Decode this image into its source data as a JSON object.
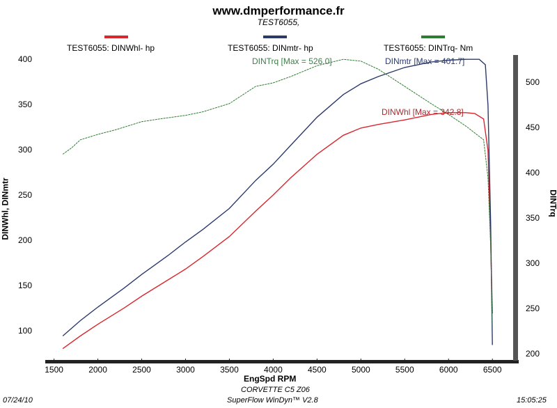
{
  "header": {
    "site": "www.dmperformance.fr",
    "test": "TEST6055,"
  },
  "legend": [
    {
      "label": "TEST6055: DINWhl-  hp",
      "color": "#d9272e"
    },
    {
      "label": "TEST6055: DINmtr-  hp",
      "color": "#2c3a6a"
    },
    {
      "label": "TEST6055: DINTrq-  Nm",
      "color": "#2e7d32"
    }
  ],
  "annotations": {
    "trq_max": "DINTrq [Max = 526.0]",
    "mtr_max": "DINmtr [Max = 401.7]",
    "whl_max": "DINWhl [Max = 342.8]"
  },
  "footer": {
    "car": "CORVETTE C5 Z06",
    "software": "SuperFlow WinDyn™ V2.8",
    "date": "07/24/10",
    "time": "15:05:25"
  },
  "chart_data": {
    "type": "line",
    "xlabel": "EngSpd  RPM",
    "ylabel": "DINWhl, DINmtr",
    "y2label": "DINTrq",
    "xlim": [
      1400,
      6800
    ],
    "ylim": [
      70,
      405
    ],
    "y2lim": [
      195,
      530
    ],
    "x_ticks": [
      1500,
      2000,
      2500,
      3000,
      3500,
      4000,
      4500,
      5000,
      5500,
      6000,
      6500
    ],
    "y_ticks": [
      100,
      150,
      200,
      250,
      300,
      350,
      400
    ],
    "y2_ticks": [
      200,
      250,
      300,
      350,
      400,
      450,
      500
    ],
    "grid": false,
    "series": [
      {
        "name": "DINWhl",
        "unit": "hp",
        "axis": "left",
        "color": "#d9272e",
        "x": [
          1600,
          1800,
          2000,
          2300,
          2500,
          2800,
          3000,
          3200,
          3500,
          3800,
          4000,
          4200,
          4500,
          4800,
          5000,
          5200,
          5500,
          5800,
          6000,
          6200,
          6300,
          6400,
          6450,
          6480,
          6500
        ],
        "y": [
          81,
          95,
          108,
          126,
          139,
          157,
          169,
          183,
          205,
          233,
          251,
          270,
          296,
          317,
          325,
          329,
          334,
          340,
          342,
          342,
          341,
          335,
          300,
          200,
          120
        ]
      },
      {
        "name": "DINmtr",
        "unit": "hp",
        "axis": "left",
        "color": "#2c3a6a",
        "x": [
          1600,
          1800,
          2000,
          2300,
          2500,
          2800,
          3000,
          3200,
          3500,
          3800,
          4000,
          4200,
          4500,
          4800,
          5000,
          5200,
          5500,
          5800,
          6000,
          6200,
          6350,
          6420,
          6450,
          6480,
          6500
        ],
        "y": [
          95,
          112,
          127,
          148,
          163,
          184,
          199,
          213,
          236,
          267,
          285,
          306,
          337,
          362,
          374,
          382,
          392,
          398,
          400,
          401,
          401,
          395,
          350,
          220,
          85
        ]
      },
      {
        "name": "DINTrq",
        "unit": "Nm",
        "axis": "right",
        "color": "#2e7d32",
        "x": [
          1600,
          1700,
          1800,
          2000,
          2200,
          2500,
          2700,
          3000,
          3200,
          3500,
          3800,
          4000,
          4200,
          4500,
          4800,
          5000,
          5200,
          5500,
          5800,
          6000,
          6200,
          6400,
          6450,
          6480,
          6500
        ],
        "y": [
          421,
          428,
          437,
          443,
          448,
          457,
          460,
          464,
          468,
          477,
          496,
          500,
          507,
          519,
          526,
          524,
          515,
          496,
          477,
          465,
          452,
          437,
          395,
          320,
          230
        ]
      }
    ]
  }
}
